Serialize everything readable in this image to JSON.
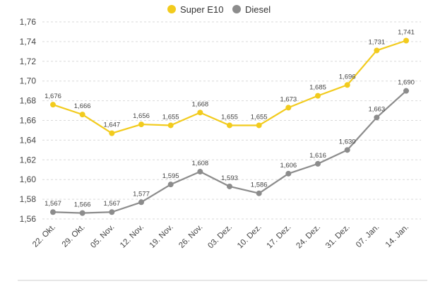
{
  "chart_data": {
    "type": "line",
    "categories": [
      "22. Okt.",
      "29. Okt.",
      "05. Nov.",
      "12. Nov.",
      "19. Nov.",
      "26. Nov.",
      "03. Dez.",
      "10. Dez.",
      "17. Dez.",
      "24. Dez.",
      "31. Dez.",
      "07. Jan.",
      "14. Jan."
    ],
    "series": [
      {
        "name": "Super E10",
        "color": "#f2cb1d",
        "values": [
          1.676,
          1.666,
          1.647,
          1.656,
          1.655,
          1.668,
          1.655,
          1.655,
          1.673,
          1.685,
          1.696,
          1.731,
          1.741
        ],
        "labels": [
          "1,676",
          "1,666",
          "1,647",
          "1,656",
          "1,655",
          "1,668",
          "1,655",
          "1,655",
          "1,673",
          "1,685",
          "1,696",
          "1,731",
          "1,741"
        ]
      },
      {
        "name": "Diesel",
        "color": "#8c8c8c",
        "values": [
          1.567,
          1.566,
          1.567,
          1.577,
          1.595,
          1.608,
          1.593,
          1.586,
          1.606,
          1.616,
          1.63,
          1.663,
          1.69
        ],
        "labels": [
          "1,567",
          "1,566",
          "1,567",
          "1,577",
          "1,595",
          "1,608",
          "1,593",
          "1,586",
          "1,606",
          "1,616",
          "1,630",
          "1,663",
          "1,690"
        ]
      }
    ],
    "yticks": [
      "1,56",
      "1,58",
      "1,60",
      "1,62",
      "1,64",
      "1,66",
      "1,68",
      "1,70",
      "1,72",
      "1,74",
      "1,76"
    ],
    "ylim": [
      1.56,
      1.76
    ],
    "grid": true,
    "legend_position": "top-center"
  }
}
